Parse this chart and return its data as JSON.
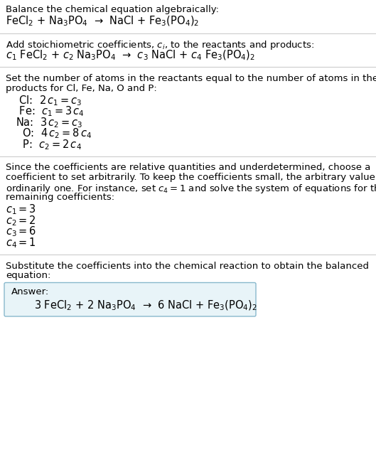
{
  "bg_color": "#ffffff",
  "text_color": "#000000",
  "line_color": "#cccccc",
  "section1_title": "Balance the chemical equation algebraically:",
  "section1_eq": "FeCl$_2$ + Na$_3$PO$_4$  →  NaCl + Fe$_3$(PO$_4$)$_2$",
  "section2_title": "Add stoichiometric coefficients, $c_i$, to the reactants and products:",
  "section2_eq": "$c_1$ FeCl$_2$ + $c_2$ Na$_3$PO$_4$  →  $c_3$ NaCl + $c_4$ Fe$_3$(PO$_4$)$_2$",
  "section3_title_lines": [
    "Set the number of atoms in the reactants equal to the number of atoms in the",
    "products for Cl, Fe, Na, O and P:"
  ],
  "section3_lines": [
    " Cl:  $2\\,c_1 = c_3$",
    " Fe:  $c_1 = 3\\,c_4$",
    "Na:  $3\\,c_2 = c_3$",
    "  O:  $4\\,c_2 = 8\\,c_4$",
    "  P:  $c_2 = 2\\,c_4$"
  ],
  "section4_title_lines": [
    "Since the coefficients are relative quantities and underdetermined, choose a",
    "coefficient to set arbitrarily. To keep the coefficients small, the arbitrary value is",
    "ordinarily one. For instance, set $c_4 = 1$ and solve the system of equations for the",
    "remaining coefficients:"
  ],
  "section4_lines": [
    "$c_1 = 3$",
    "$c_2 = 2$",
    "$c_3 = 6$",
    "$c_4 = 1$"
  ],
  "section5_title_lines": [
    "Substitute the coefficients into the chemical reaction to obtain the balanced",
    "equation:"
  ],
  "answer_label": "Answer:",
  "answer_eq": "3 FeCl$_2$ + 2 Na$_3$PO$_4$  →  6 NaCl + Fe$_3$(PO$_4$)$_2$",
  "answer_box_color": "#e8f4f8",
  "answer_box_edge": "#88b8cc",
  "font_size_body": 9.5,
  "font_size_eq": 10.5
}
